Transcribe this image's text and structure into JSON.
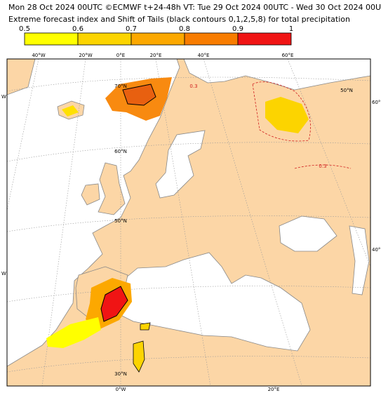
{
  "header": {
    "line1": "Mon 28 Oct 2024 00UTC ©ECMWF t+24-48h  VT: Tue 29 Oct 2024 00UTC - Wed 30 Oct 2024 00UTC",
    "line2": "Extreme forecast index and Shift of Tails (black contours 0,1,2,5,8) for total precipitation"
  },
  "colorbar": {
    "ticks": [
      0.5,
      0.6,
      0.7,
      0.8,
      0.9,
      1
    ],
    "colors": [
      "#ffff00",
      "#fcd400",
      "#fca800",
      "#f87c00",
      "#f01414"
    ]
  },
  "map": {
    "top_labels": [
      "40°W",
      "20°W",
      "0°E",
      "20°E",
      "40°E",
      "60°E"
    ],
    "bottom_labels": [
      "0°W",
      "20°E"
    ],
    "right_labels": [
      "60°E",
      "40°E"
    ],
    "lat_labels": [
      "70°N",
      "60°N",
      "50°N",
      "30°N",
      "50°N"
    ],
    "left_labels": [
      "W",
      "W"
    ],
    "contour_labels": [
      "0.3",
      "0.3"
    ]
  }
}
